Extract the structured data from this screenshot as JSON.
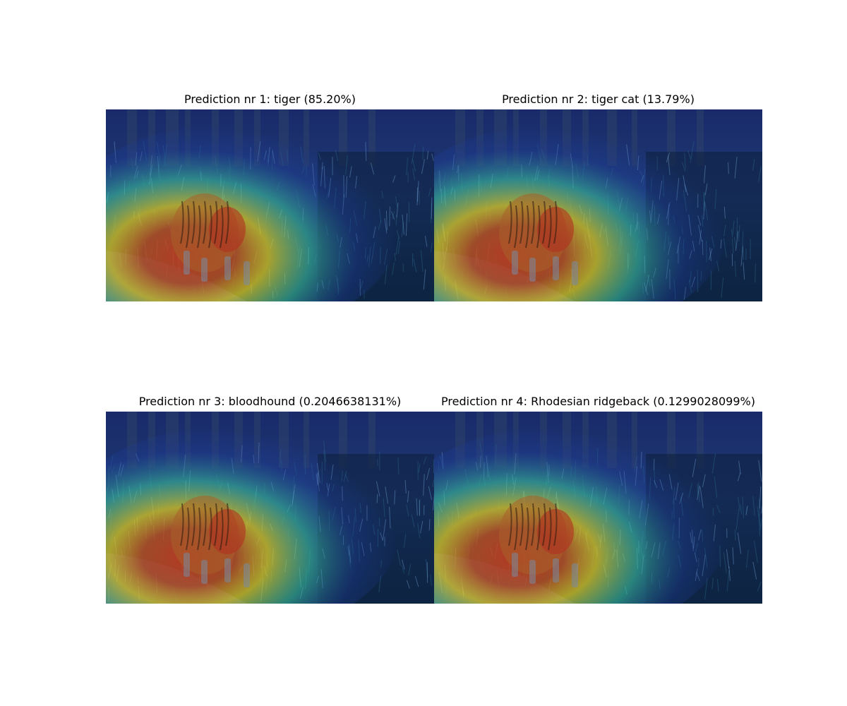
{
  "figure": {
    "panels": [
      {
        "title": "Prediction nr 1: tiger (85.20%)"
      },
      {
        "title": "Prediction nr 2: tiger cat (13.79%)"
      },
      {
        "title": "Prediction nr 3: bloodhound (0.2046638131%)"
      },
      {
        "title": "Prediction nr 4: Rhodesian ridgeback (0.1299028099%)"
      }
    ]
  },
  "colors": {
    "background": "#ffffff",
    "forest_dark": "#0d1f3c",
    "heat_hot": "#d03a1a",
    "heat_warm": "#e8d21c",
    "heat_mid": "#3cc8a0",
    "heat_cool": "#1f3fa0"
  }
}
